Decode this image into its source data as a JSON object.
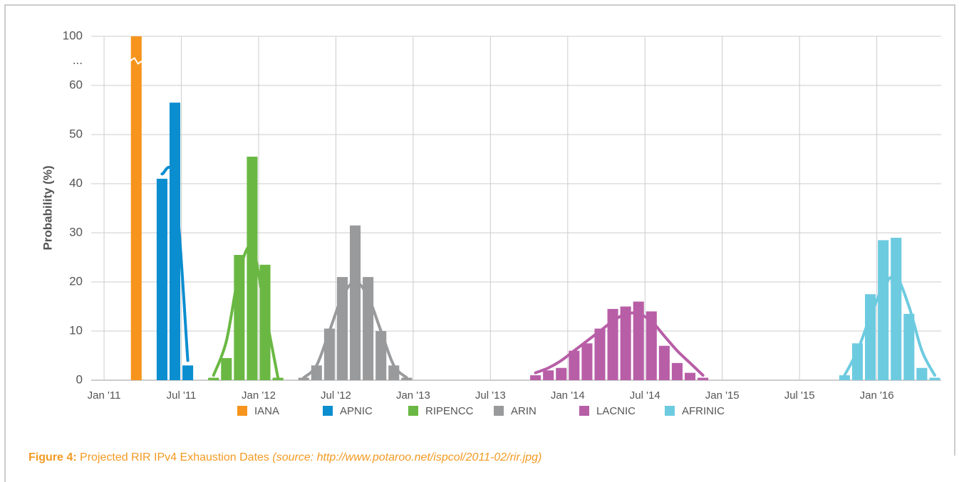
{
  "chart_data": {
    "type": "histogram-fit",
    "ylabel": "Probability (%)",
    "xlim": [
      "2010-12",
      "2016-06"
    ],
    "xticks": [
      {
        "value": "2011-01",
        "label": "Jan '11"
      },
      {
        "value": "2011-07",
        "label": "Jul '11"
      },
      {
        "value": "2012-01",
        "label": "Jan '12"
      },
      {
        "value": "2012-07",
        "label": "Jul '12"
      },
      {
        "value": "2013-01",
        "label": "Jan '13"
      },
      {
        "value": "2013-07",
        "label": "Jul '13"
      },
      {
        "value": "2014-01",
        "label": "Jan '14"
      },
      {
        "value": "2014-07",
        "label": "Jul '14"
      },
      {
        "value": "2015-01",
        "label": "Jan '15"
      },
      {
        "value": "2015-07",
        "label": "Jul '15"
      },
      {
        "value": "2016-01",
        "label": "Jan '16"
      }
    ],
    "ylim": [
      0,
      100
    ],
    "axis_break": 60,
    "yticks": [
      0,
      10,
      20,
      30,
      40,
      50,
      60,
      {
        "value": 80,
        "label": "..."
      },
      100
    ],
    "grid": true,
    "legend": "bottom",
    "series": [
      {
        "name": "IANA",
        "color": "#f7941d",
        "x": [
          "2011-03"
        ],
        "values": [
          100
        ]
      },
      {
        "name": "APNIC",
        "color": "#0a8ed0",
        "x": [
          "2011-05",
          "2011-06",
          "2011-07"
        ],
        "values": [
          41,
          56.5,
          3
        ],
        "fit": [
          42,
          40,
          4
        ]
      },
      {
        "name": "RIPENCC",
        "color": "#6ab843",
        "x": [
          "2011-09",
          "2011-10",
          "2011-11",
          "2011-12",
          "2012-01",
          "2012-02"
        ],
        "values": [
          0.5,
          4.5,
          25.5,
          45.5,
          23.5,
          0.5
        ],
        "fit": [
          1,
          8,
          22,
          27,
          14,
          0.5
        ]
      },
      {
        "name": "ARIN",
        "color": "#999a9c",
        "x": [
          "2012-04",
          "2012-05",
          "2012-06",
          "2012-07",
          "2012-08",
          "2012-09",
          "2012-10",
          "2012-11",
          "2012-12"
        ],
        "values": [
          0.5,
          3,
          10.5,
          21,
          31.5,
          21,
          10,
          3,
          0.5
        ],
        "fit": [
          0.5,
          3,
          10,
          17,
          20,
          17,
          10,
          3,
          0.5
        ]
      },
      {
        "name": "LACNIC",
        "color": "#b85ea7",
        "x": [
          "2013-10",
          "2013-11",
          "2013-12",
          "2014-01",
          "2014-02",
          "2014-03",
          "2014-04",
          "2014-05",
          "2014-06",
          "2014-07",
          "2014-08",
          "2014-09",
          "2014-10",
          "2014-11"
        ],
        "values": [
          1,
          2,
          2.5,
          6,
          7.5,
          10.5,
          14.5,
          15,
          16,
          14,
          7,
          3.5,
          1.5,
          0.5
        ],
        "fit": [
          1.5,
          2.5,
          4,
          6,
          8,
          10,
          12,
          13.5,
          13.5,
          12,
          9,
          6,
          3.5,
          1
        ]
      },
      {
        "name": "AFRINIC",
        "color": "#6dcbe0",
        "x": [
          "2015-10",
          "2015-11",
          "2015-12",
          "2016-01",
          "2016-02",
          "2016-03",
          "2016-04",
          "2016-05"
        ],
        "values": [
          1,
          7.5,
          17.5,
          28.5,
          29,
          13.5,
          2.5,
          0.5
        ],
        "fit": [
          1,
          6,
          13,
          19,
          21,
          15,
          6,
          1
        ]
      }
    ],
    "caption": {
      "label": "Figure 4:",
      "text": "Projected RIR IPv4 Exhaustion Dates",
      "source": "(source: http://www.potaroo.net/ispcol/2011-02/rir.jpg)"
    }
  }
}
